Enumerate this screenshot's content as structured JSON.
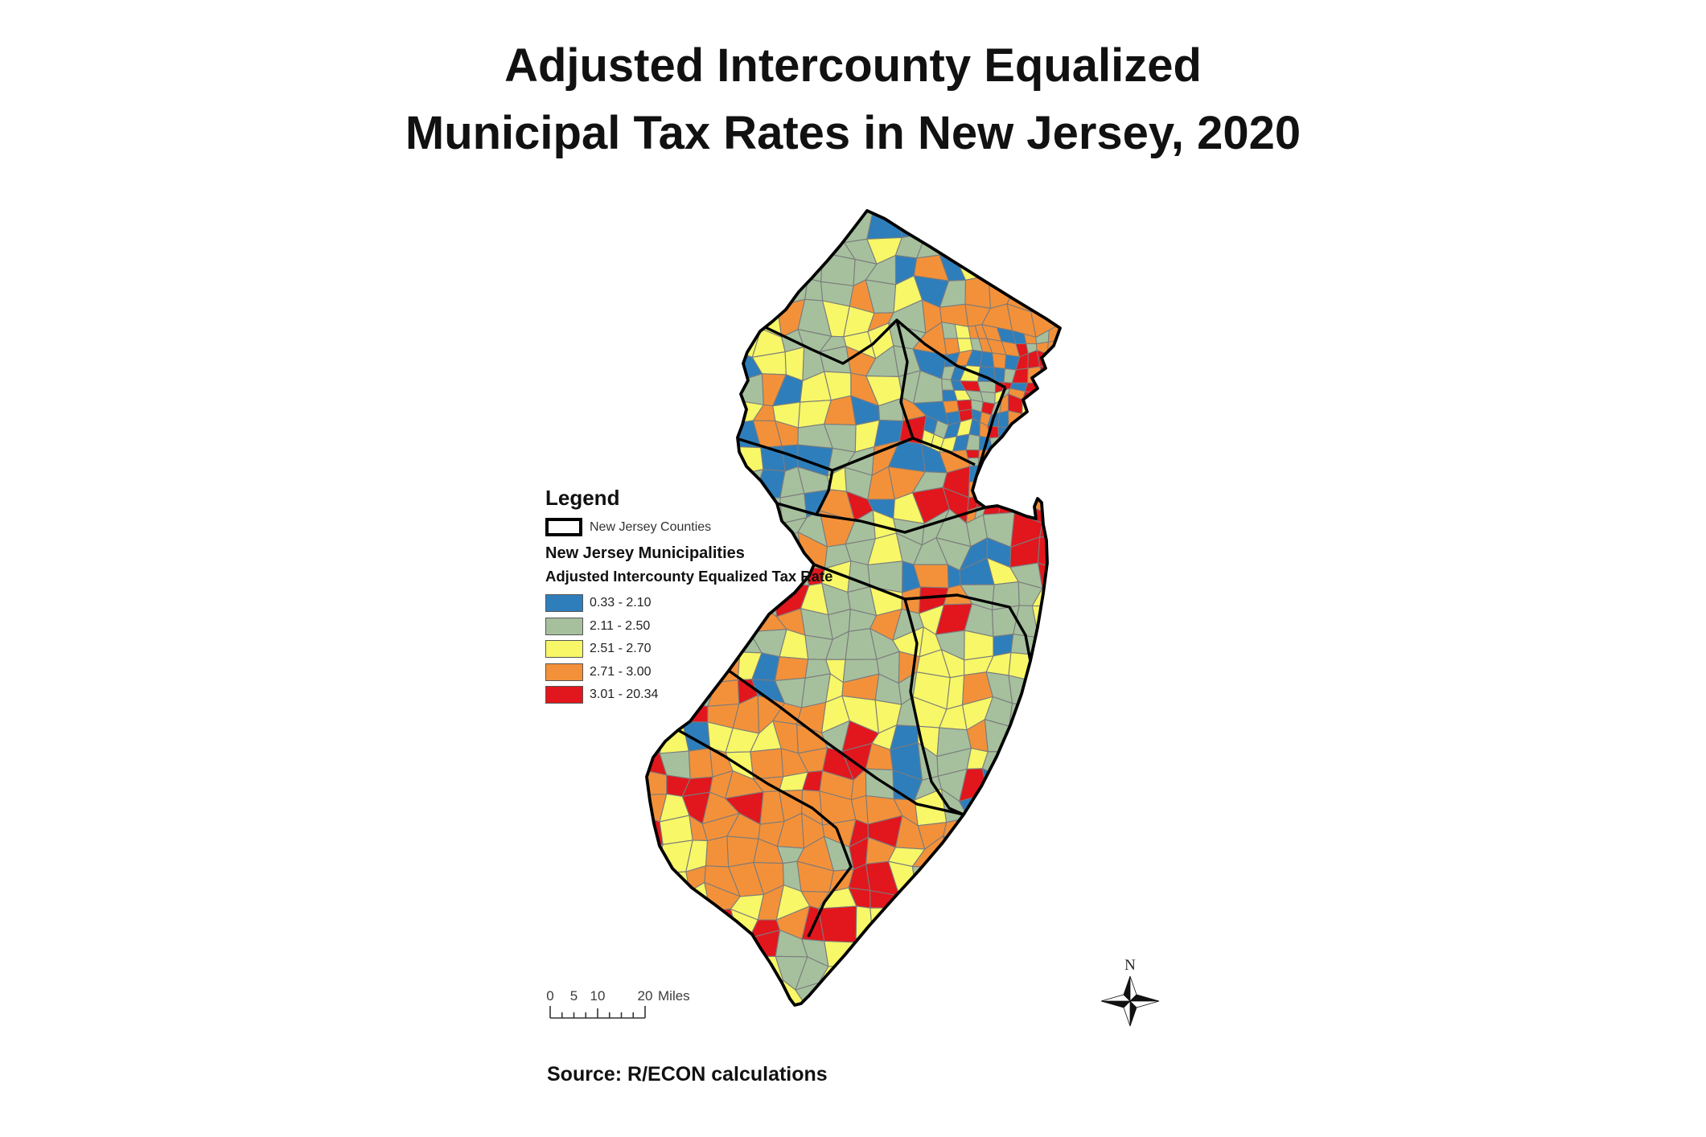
{
  "title": {
    "line1": "Adjusted Intercounty Equalized",
    "line2": "Municipal Tax Rates in New Jersey, 2020"
  },
  "legend": {
    "heading": "Legend",
    "counties_label": "New Jersey Counties",
    "municipalities_heading": "New Jersey Municipalities",
    "rate_heading": "Adjusted Intercounty Equalized Tax Rate",
    "classes": [
      {
        "label": "0.33 - 2.10",
        "color": "#2E7EBC"
      },
      {
        "label": "2.11 - 2.50",
        "color": "#A6C09E"
      },
      {
        "label": "2.51 - 2.70",
        "color": "#F7F768"
      },
      {
        "label": "2.71 - 3.00",
        "color": "#F3913A"
      },
      {
        "label": "3.01 - 20.34",
        "color": "#E2161D"
      }
    ]
  },
  "map": {
    "region": "New Jersey",
    "county_line_color": "#000000",
    "municipal_line_color": "#7b7b7b"
  },
  "scale_bar": {
    "labels": [
      "0",
      "5",
      "10",
      "20"
    ],
    "unit": "Miles"
  },
  "compass": {
    "label": "N"
  },
  "source": {
    "text": "Source: R/ECON calculations"
  }
}
